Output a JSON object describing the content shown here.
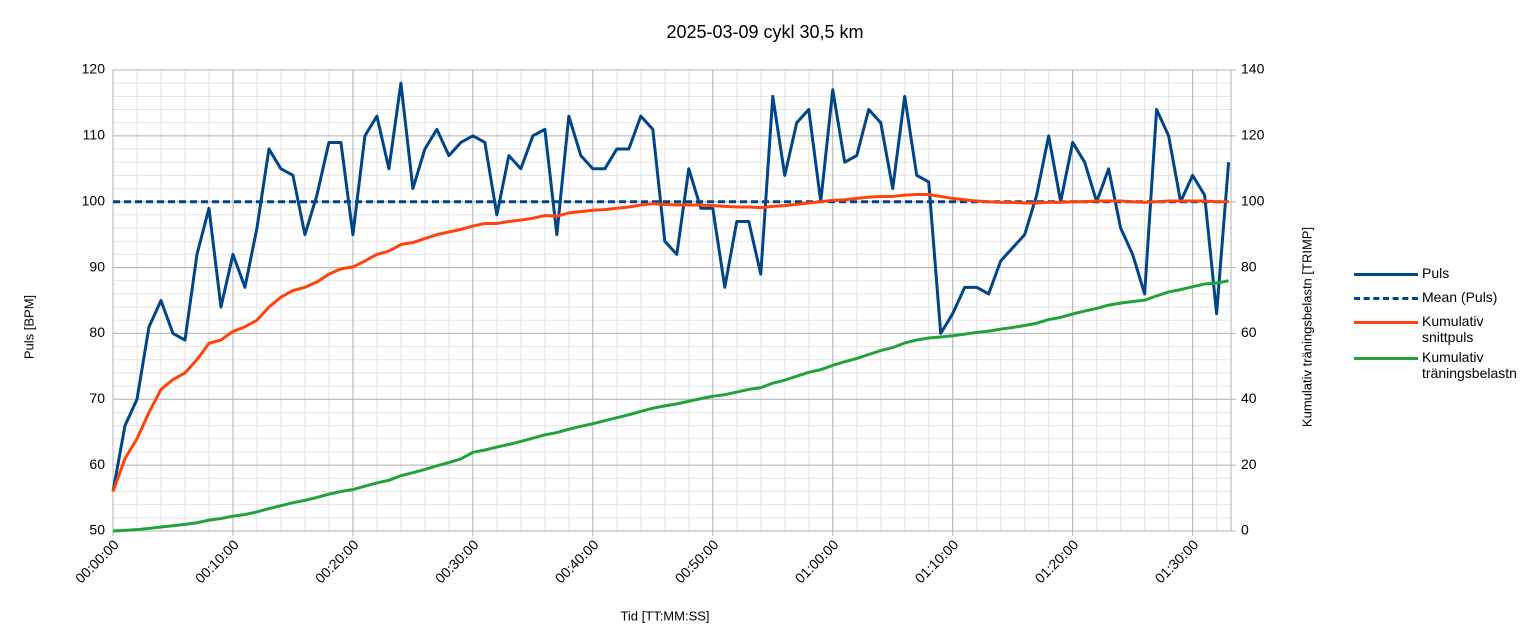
{
  "chart_data": {
    "type": "line",
    "title": "2025-03-09 cykl 30,5 km",
    "x_label": "Tid [TT:MM:SS]",
    "y_label": "Puls [BPM]",
    "y2_label": "Kumulativ träningsbelastn [TRIMP]",
    "x": [
      0,
      1,
      2,
      3,
      4,
      5,
      6,
      7,
      8,
      9,
      10,
      11,
      12,
      13,
      14,
      15,
      16,
      17,
      18,
      19,
      20,
      21,
      22,
      23,
      24,
      25,
      26,
      27,
      28,
      29,
      30,
      31,
      32,
      33,
      34,
      35,
      36,
      37,
      38,
      39,
      40,
      41,
      42,
      43,
      44,
      45,
      46,
      47,
      48,
      49,
      50,
      51,
      52,
      53,
      54,
      55,
      56,
      57,
      58,
      59,
      60,
      61,
      62,
      63,
      64,
      65,
      66,
      67,
      68,
      69,
      70,
      71,
      72,
      73,
      74,
      75,
      76,
      77,
      78,
      79,
      80,
      81,
      82,
      83,
      84,
      85,
      86,
      87,
      88,
      89,
      90,
      91,
      92,
      93
    ],
    "xlim": [
      0,
      93.2
    ],
    "xticks": [
      {
        "value": 0,
        "label": "00:00:00"
      },
      {
        "value": 10,
        "label": "00:10:00"
      },
      {
        "value": 20,
        "label": "00:20:00"
      },
      {
        "value": 30,
        "label": "00:30:00"
      },
      {
        "value": 40,
        "label": "00:40:00"
      },
      {
        "value": 50,
        "label": "00:50:00"
      },
      {
        "value": 60,
        "label": "01:00:00"
      },
      {
        "value": 70,
        "label": "01:10:00"
      },
      {
        "value": 80,
        "label": "01:20:00"
      },
      {
        "value": 90,
        "label": "01:30:00"
      }
    ],
    "ylim": [
      50,
      120
    ],
    "yticks": [
      50,
      60,
      70,
      80,
      90,
      100,
      110,
      120
    ],
    "y2lim": [
      0,
      140
    ],
    "y2ticks": [
      0,
      20,
      40,
      60,
      80,
      100,
      120,
      140
    ],
    "grid": true,
    "minor_grid": true,
    "legend": "right",
    "series": [
      {
        "name": "Puls",
        "color": "#004586",
        "values": [
          56,
          66,
          70,
          81,
          85,
          80,
          79,
          92,
          99,
          84,
          92,
          87,
          96,
          108,
          105,
          104,
          95,
          101,
          109,
          109,
          95,
          110,
          113,
          105,
          118,
          102,
          108,
          111,
          107,
          109,
          110,
          109,
          98,
          107,
          105,
          110,
          111,
          95,
          113,
          107,
          105,
          105,
          108,
          108,
          113,
          111,
          94,
          92,
          105,
          99,
          99,
          87,
          97,
          97,
          89,
          116,
          104,
          112,
          114,
          100,
          117,
          106,
          107,
          114,
          112,
          102,
          116,
          104,
          103,
          80,
          83,
          87,
          87,
          86,
          91,
          93,
          95,
          101,
          110,
          100,
          109,
          106,
          100,
          105,
          96,
          92,
          86,
          114,
          110,
          100,
          104,
          101,
          83,
          106
        ]
      },
      {
        "name": "Mean (Puls)",
        "color": "#004586",
        "style": "dashed",
        "values": [
          100,
          100,
          100,
          100,
          100,
          100,
          100,
          100,
          100,
          100,
          100,
          100,
          100,
          100,
          100,
          100,
          100,
          100,
          100,
          100,
          100,
          100,
          100,
          100,
          100,
          100,
          100,
          100,
          100,
          100,
          100,
          100,
          100,
          100,
          100,
          100,
          100,
          100,
          100,
          100,
          100,
          100,
          100,
          100,
          100,
          100,
          100,
          100,
          100,
          100,
          100,
          100,
          100,
          100,
          100,
          100,
          100,
          100,
          100,
          100,
          100,
          100,
          100,
          100,
          100,
          100,
          100,
          100,
          100,
          100,
          100,
          100,
          100,
          100,
          100,
          100,
          100,
          100,
          100,
          100,
          100,
          100,
          100,
          100,
          100,
          100,
          100,
          100,
          100,
          100,
          100,
          100,
          100,
          100
        ]
      },
      {
        "name": "Kumulativ snittpuls",
        "color": "#ff420e",
        "values": [
          56,
          61,
          64,
          68,
          71.5,
          73,
          74,
          76,
          78.5,
          79,
          80.3,
          81,
          82,
          84,
          85.5,
          86.5,
          87,
          87.8,
          89,
          89.8,
          90.1,
          91,
          92,
          92.5,
          93.5,
          93.8,
          94.4,
          95,
          95.4,
          95.8,
          96.3,
          96.7,
          96.7,
          97,
          97.2,
          97.5,
          97.9,
          97.8,
          98.3,
          98.5,
          98.7,
          98.8,
          99,
          99.2,
          99.5,
          99.7,
          99.6,
          99.5,
          99.5,
          99.5,
          99.4,
          99.3,
          99.2,
          99.2,
          99.1,
          99.3,
          99.4,
          99.6,
          99.8,
          100,
          100.2,
          100.3,
          100.5,
          100.7,
          100.8,
          100.8,
          101,
          101.1,
          101.1,
          100.8,
          100.5,
          100.3,
          100.1,
          100,
          99.9,
          99.9,
          99.8,
          99.8,
          99.9,
          99.9,
          100,
          100,
          100.1,
          100.1,
          100.1,
          100,
          99.9,
          100,
          100.1,
          100.1,
          100.1,
          100.1,
          100,
          100
        ]
      },
      {
        "name": "Kumulativ träningsbelastn",
        "color": "#22a33a",
        "axis": "y2",
        "values": [
          0,
          0.2,
          0.4,
          0.8,
          1.2,
          1.6,
          2,
          2.5,
          3.3,
          3.8,
          4.5,
          5,
          5.8,
          6.8,
          7.7,
          8.6,
          9.3,
          10.2,
          11.2,
          12,
          12.6,
          13.6,
          14.6,
          15.4,
          16.8,
          17.7,
          18.7,
          19.8,
          20.8,
          21.9,
          23.9,
          24.6,
          25.5,
          26.3,
          27.2,
          28.2,
          29.2,
          29.9,
          30.9,
          31.8,
          32.6,
          33.5,
          34.4,
          35.3,
          36.3,
          37.3,
          38,
          38.6,
          39.4,
          40.2,
          40.9,
          41.4,
          42.2,
          43,
          43.5,
          44.9,
          45.8,
          47,
          48.2,
          49,
          50.3,
          51.4,
          52.4,
          53.6,
          54.8,
          55.7,
          57.1,
          58,
          58.6,
          58.9,
          59.3,
          59.8,
          60.3,
          60.7,
          61.3,
          61.8,
          62.4,
          63.1,
          64.2,
          64.9,
          65.9,
          66.8,
          67.6,
          68.6,
          69.2,
          69.7,
          70.1,
          71.4,
          72.6,
          73.3,
          74.2,
          75,
          75.3,
          76
        ]
      }
    ]
  }
}
